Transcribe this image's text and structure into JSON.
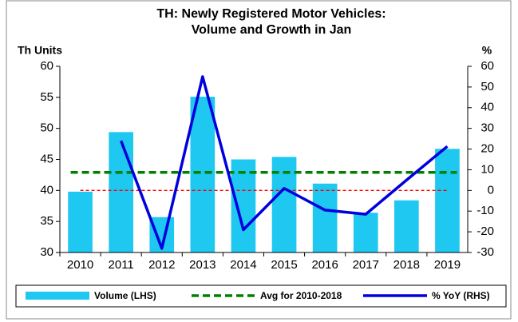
{
  "chart_data": {
    "type": "bar-line",
    "title": [
      "TH: Newly Registered Motor Vehicles:",
      "Volume and Growth in Jan"
    ],
    "ylabel": "Th Units",
    "y2label": "%",
    "categories": [
      "2010",
      "2011",
      "2012",
      "2013",
      "2014",
      "2015",
      "2016",
      "2017",
      "2018",
      "2019"
    ],
    "ylim": [
      30,
      60
    ],
    "yticks": [
      30,
      35,
      40,
      45,
      50,
      55,
      60
    ],
    "y2lim": [
      -30,
      60
    ],
    "y2ticks": [
      -30,
      -20,
      -10,
      0,
      10,
      20,
      30,
      40,
      50,
      60
    ],
    "series": [
      {
        "name": "Volume (LHS)",
        "type": "bar",
        "color": "#1ec8f0",
        "values": [
          39.8,
          49.4,
          35.7,
          55.1,
          45.0,
          45.4,
          41.1,
          36.4,
          38.4,
          46.7
        ]
      },
      {
        "name": "Avg for 2010-2018",
        "type": "hline",
        "color": "#008000",
        "value": 42.9
      },
      {
        "name": "% YoY (RHS)",
        "type": "line",
        "axis": "y2",
        "color": "#0000dd",
        "values": [
          null,
          24,
          -28,
          55,
          -19,
          1,
          -9.5,
          -11.5,
          5,
          21.3
        ]
      }
    ],
    "reference_color": "#ff0000"
  }
}
